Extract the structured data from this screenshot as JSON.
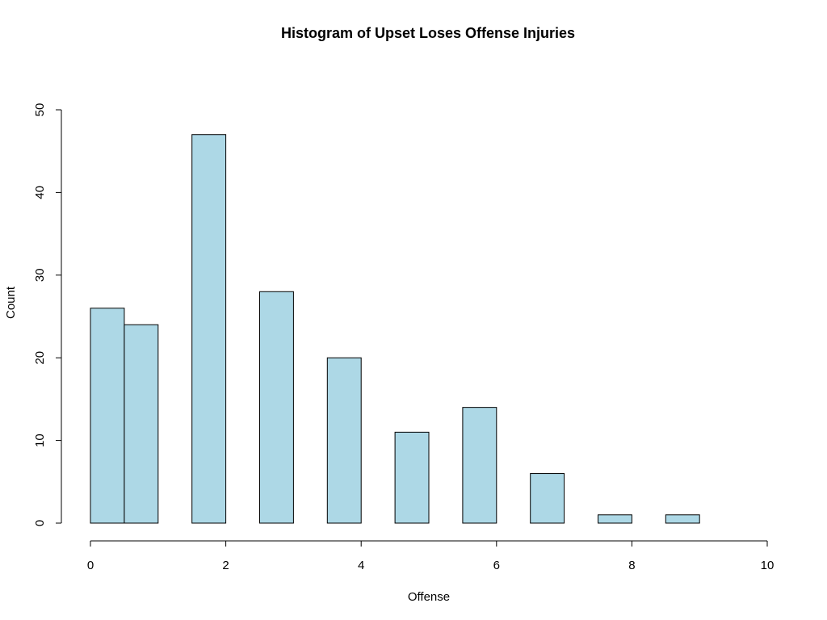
{
  "chart_data": {
    "type": "bar",
    "title": "Histogram of Upset Loses Offense Injuries",
    "xlabel": "Offense",
    "ylabel": "Count",
    "xlim": [
      0,
      10
    ],
    "ylim": [
      0,
      50
    ],
    "x_ticks": [
      "0",
      "2",
      "4",
      "6",
      "8",
      "10"
    ],
    "y_ticks": [
      "0",
      "10",
      "20",
      "30",
      "40",
      "50"
    ],
    "bar_color": "#add8e6",
    "grid": false,
    "bins": [
      {
        "from": 0,
        "to": 0.5,
        "count": 26
      },
      {
        "from": 0.5,
        "to": 1,
        "count": 24
      },
      {
        "from": 1,
        "to": 1.5,
        "count": 0
      },
      {
        "from": 1.5,
        "to": 2,
        "count": 47
      },
      {
        "from": 2,
        "to": 2.5,
        "count": 0
      },
      {
        "from": 2.5,
        "to": 3,
        "count": 28
      },
      {
        "from": 3,
        "to": 3.5,
        "count": 0
      },
      {
        "from": 3.5,
        "to": 4,
        "count": 20
      },
      {
        "from": 4,
        "to": 4.5,
        "count": 0
      },
      {
        "from": 4.5,
        "to": 5,
        "count": 11
      },
      {
        "from": 5,
        "to": 5.5,
        "count": 0
      },
      {
        "from": 5.5,
        "to": 6,
        "count": 14
      },
      {
        "from": 6,
        "to": 6.5,
        "count": 0
      },
      {
        "from": 6.5,
        "to": 7,
        "count": 6
      },
      {
        "from": 7,
        "to": 7.5,
        "count": 0
      },
      {
        "from": 7.5,
        "to": 8,
        "count": 1
      },
      {
        "from": 8,
        "to": 8.5,
        "count": 0
      },
      {
        "from": 8.5,
        "to": 9,
        "count": 1
      }
    ]
  }
}
